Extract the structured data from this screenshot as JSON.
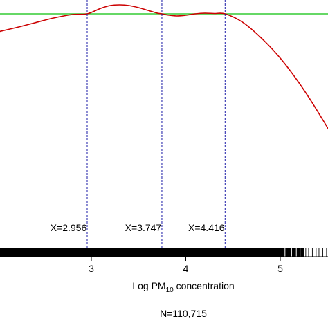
{
  "chart_data": {
    "type": "line",
    "xlabel": {
      "prefix": "Log PM",
      "subscript": "10",
      "suffix": " concentration"
    },
    "footnote": "N=110,715",
    "xlim": [
      2.0,
      5.8
    ],
    "ylim": [
      -0.52,
      0.03
    ],
    "x_ticks": [
      3,
      4,
      5
    ],
    "x_tick_labels": [
      "3",
      "4",
      "5"
    ],
    "grid": false,
    "legend": "none",
    "reference_line": {
      "y": 0.0,
      "color": "#33cc33"
    },
    "curve": {
      "color": "#cc0000",
      "x": [
        1.95,
        2.2,
        2.4,
        2.6,
        2.8,
        2.956,
        3.1,
        3.2,
        3.3,
        3.4,
        3.5,
        3.6,
        3.7,
        3.747,
        3.8,
        3.9,
        4.0,
        4.1,
        4.2,
        4.3,
        4.416,
        4.6,
        4.8,
        5.0,
        5.2,
        5.4,
        5.6,
        5.8
      ],
      "y": [
        -0.028,
        -0.02,
        -0.013,
        -0.006,
        -0.001,
        0.0,
        0.008,
        0.012,
        0.013,
        0.012,
        0.009,
        0.005,
        0.001,
        0.0,
        -0.0015,
        -0.003,
        -0.002,
        0.0,
        0.001,
        0.0005,
        0.0,
        -0.012,
        -0.035,
        -0.064,
        -0.1,
        -0.142,
        -0.19,
        -0.26
      ]
    },
    "vlines": [
      {
        "x": 2.956,
        "label": "X=2.956"
      },
      {
        "x": 3.747,
        "label": "X=3.747"
      },
      {
        "x": 4.416,
        "label": "X=4.416"
      }
    ],
    "vline_color": "#1a1aa6",
    "rug": {
      "dense_range": [
        2.0,
        5.25
      ],
      "tail_x": [
        5.27,
        5.3,
        5.34,
        5.38,
        5.41,
        5.45,
        5.49,
        5.53,
        5.58,
        5.63,
        5.7
      ]
    }
  }
}
